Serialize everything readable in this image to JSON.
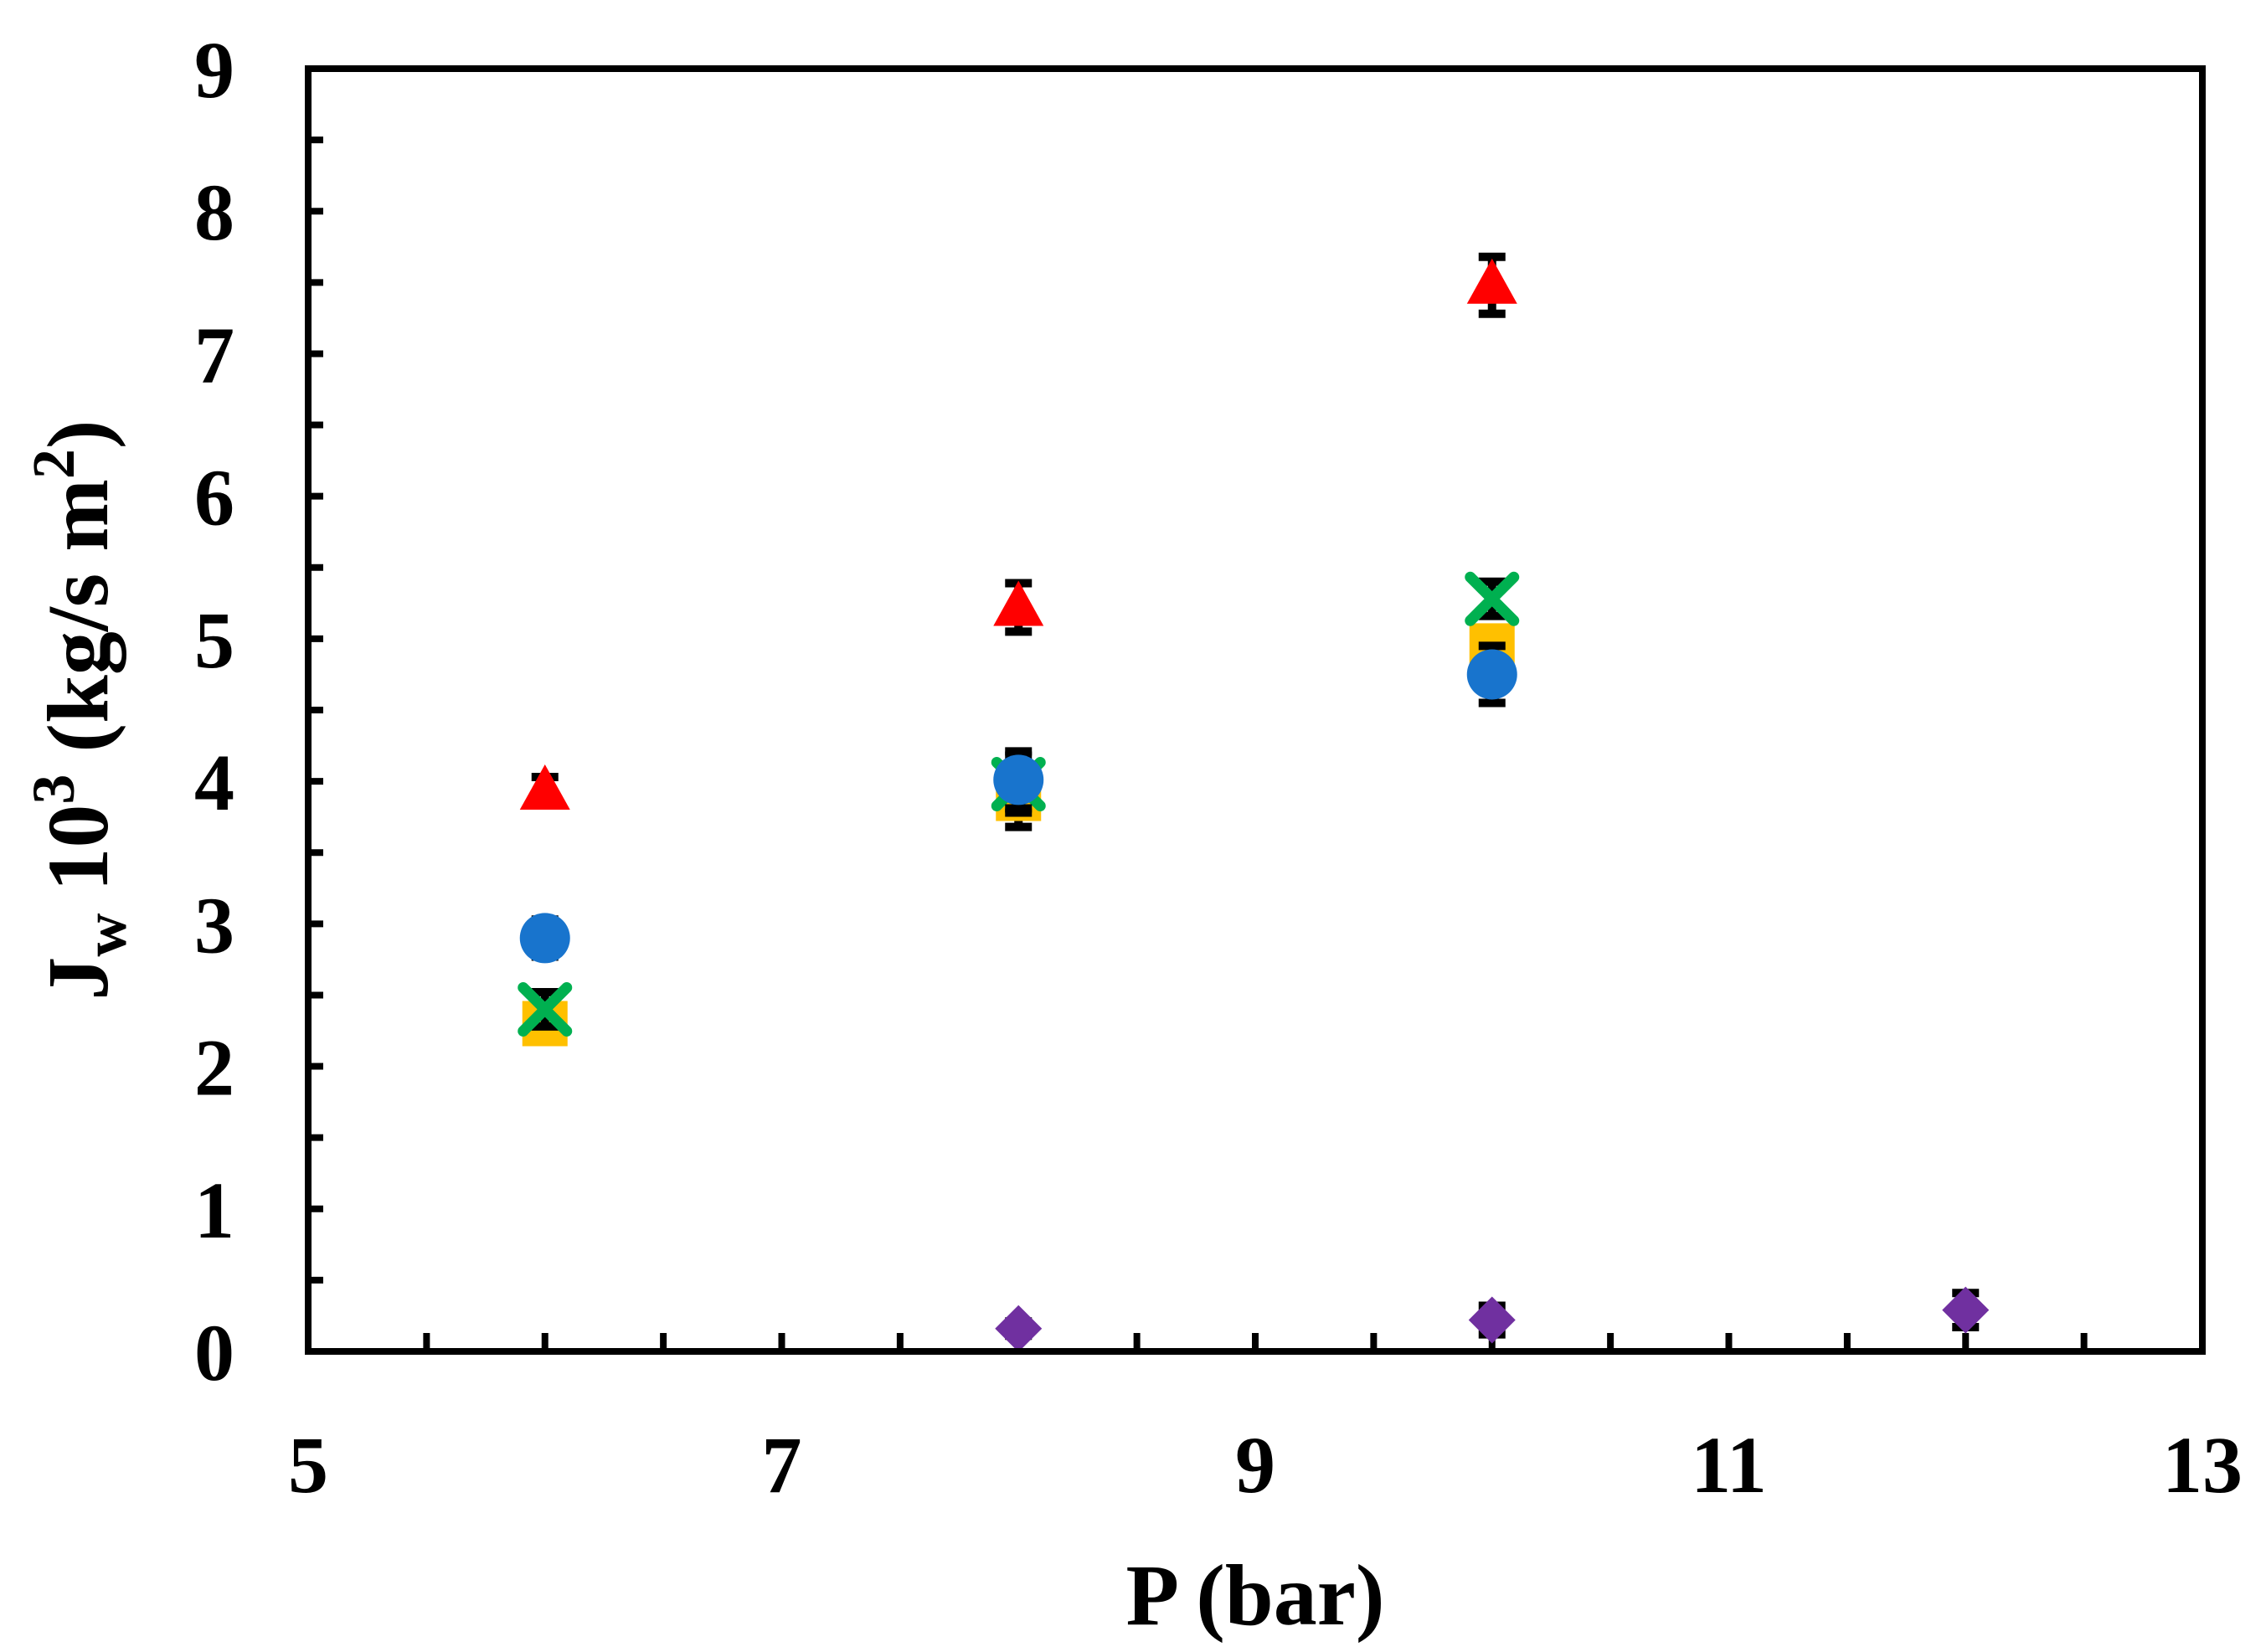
{
  "chart_data": {
    "type": "scatter",
    "xlabel": "P (bar)",
    "ylabel": {
      "main": "J",
      "subscript": "w",
      "middle": " 10",
      "sup1": "3",
      "unit": " (kg/s m",
      "sup2": "2",
      "close": ")"
    },
    "xlim": [
      5,
      13
    ],
    "ylim": [
      0,
      9
    ],
    "x_ticks": [
      5,
      7,
      9,
      11,
      13
    ],
    "x_minor_step": 0.5,
    "y_ticks": [
      0,
      1,
      2,
      3,
      4,
      5,
      6,
      7,
      8,
      9
    ],
    "y_minor_step": 0.5,
    "grid": false,
    "legend": "none",
    "series": [
      {
        "marker": "triangle",
        "color": "#ff0000",
        "x": [
          6,
          8,
          10
        ],
        "y": [
          3.93,
          5.22,
          7.48
        ],
        "err": [
          0.1,
          0.17,
          0.2
        ]
      },
      {
        "marker": "square",
        "color": "#ffc000",
        "x": [
          6,
          8,
          10
        ],
        "y": [
          2.3,
          3.88,
          4.95
        ],
        "err": [
          0.12,
          0.2,
          0.12
        ]
      },
      {
        "marker": "x",
        "color": "#00b050",
        "x": [
          6,
          8,
          10
        ],
        "y": [
          2.4,
          3.98,
          5.28
        ],
        "err": [
          0.12,
          0.2,
          0.12
        ]
      },
      {
        "marker": "circle",
        "color": "#1874cd",
        "x": [
          6,
          8,
          10
        ],
        "y": [
          2.9,
          4.01,
          4.75
        ],
        "err": [
          0.13,
          0.2,
          0.2
        ]
      },
      {
        "marker": "diamond",
        "color": "#7030a0",
        "x": [
          8,
          10,
          12
        ],
        "y": [
          0.16,
          0.22,
          0.29
        ],
        "err": [
          0.05,
          0.1,
          0.12
        ]
      }
    ]
  }
}
